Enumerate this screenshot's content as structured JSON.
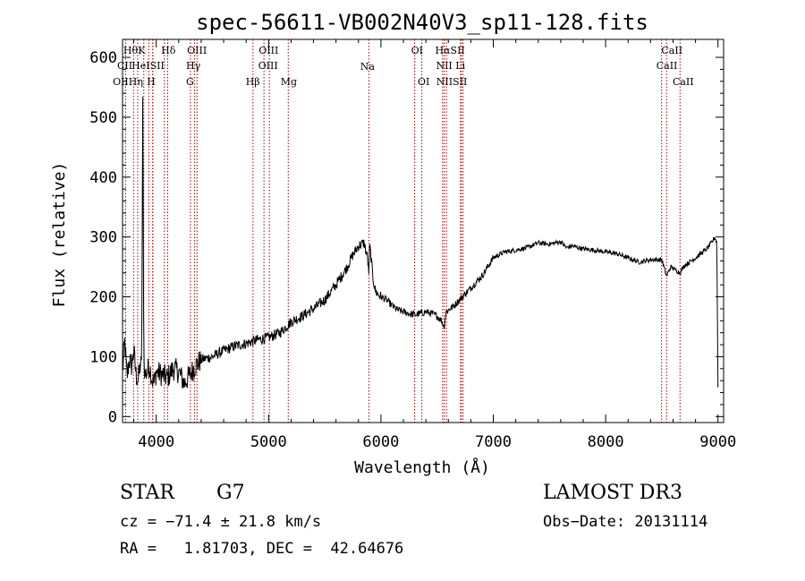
{
  "chart_data": {
    "type": "line",
    "title": "spec-56611-VB002N40V3_sp11-128.fits",
    "xlabel": "Wavelength (Å)",
    "ylabel": "Flux (relative)",
    "xlim": [
      3700,
      9050
    ],
    "ylim": [
      -10,
      630
    ],
    "xticks": [
      4000,
      5000,
      6000,
      7000,
      8000,
      9000
    ],
    "yticks": [
      0,
      100,
      200,
      300,
      400,
      500,
      600
    ],
    "line_color": "#000000",
    "marker_color": "#b00000",
    "spectrum": {
      "name": "flux",
      "x": [
        3700,
        3720,
        3740,
        3760,
        3780,
        3800,
        3820,
        3840,
        3860,
        3870,
        3880,
        3890,
        3900,
        3920,
        3940,
        3960,
        3980,
        4000,
        4050,
        4100,
        4150,
        4200,
        4250,
        4300,
        4350,
        4400,
        4500,
        4600,
        4700,
        4800,
        4900,
        5000,
        5100,
        5200,
        5300,
        5400,
        5500,
        5600,
        5700,
        5750,
        5800,
        5850,
        5880,
        5893,
        5900,
        5910,
        5930,
        5950,
        5970,
        6000,
        6050,
        6100,
        6150,
        6200,
        6250,
        6300,
        6350,
        6400,
        6450,
        6500,
        6540,
        6563,
        6580,
        6600,
        6650,
        6700,
        6750,
        6800,
        6900,
        7000,
        7100,
        7200,
        7300,
        7400,
        7500,
        7600,
        7650,
        7700,
        7800,
        7900,
        8000,
        8100,
        8200,
        8300,
        8400,
        8500,
        8542,
        8580,
        8662,
        8700,
        8800,
        8900,
        8950,
        8970,
        8990,
        9000
      ],
      "y": [
        75,
        125,
        65,
        95,
        85,
        110,
        70,
        60,
        90,
        80,
        520,
        95,
        70,
        75,
        85,
        65,
        55,
        75,
        70,
        65,
        80,
        75,
        55,
        70,
        85,
        95,
        100,
        110,
        118,
        122,
        128,
        132,
        140,
        158,
        168,
        180,
        195,
        220,
        250,
        270,
        285,
        290,
        265,
        240,
        285,
        270,
        230,
        210,
        205,
        200,
        195,
        185,
        178,
        175,
        172,
        170,
        172,
        175,
        172,
        168,
        160,
        150,
        175,
        178,
        185,
        195,
        205,
        215,
        235,
        265,
        275,
        278,
        282,
        290,
        288,
        292,
        282,
        285,
        280,
        278,
        275,
        272,
        265,
        258,
        262,
        262,
        235,
        250,
        240,
        252,
        265,
        280,
        292,
        300,
        290,
        50
      ]
    },
    "line_markers": [
      {
        "name": "OII",
        "wl": 3727
      },
      {
        "name": "Hθ",
        "wl": 3798
      },
      {
        "name": "CII",
        "wl": 3835
      },
      {
        "name": "Hη",
        "wl": 3889
      },
      {
        "name": "K",
        "wl": 3934
      },
      {
        "name": "HeI",
        "wl": 3968
      },
      {
        "name": "H",
        "wl": 3970
      },
      {
        "name": "SII",
        "wl": 4072
      },
      {
        "name": "Hδ",
        "wl": 4102
      },
      {
        "name": "G",
        "wl": 4304
      },
      {
        "name": "Hγ",
        "wl": 4340
      },
      {
        "name": "OIII",
        "wl": 4363
      },
      {
        "name": "Hβ",
        "wl": 4861
      },
      {
        "name": "OIII",
        "wl": 4959
      },
      {
        "name": "OIII",
        "wl": 5007
      },
      {
        "name": "Mg",
        "wl": 5175
      },
      {
        "name": "Na",
        "wl": 5893
      },
      {
        "name": "OI",
        "wl": 6300
      },
      {
        "name": "OI",
        "wl": 6364
      },
      {
        "name": "NII",
        "wl": 6548
      },
      {
        "name": "Hα",
        "wl": 6563
      },
      {
        "name": "NII",
        "wl": 6583
      },
      {
        "name": "Li",
        "wl": 6708
      },
      {
        "name": "SII",
        "wl": 6716
      },
      {
        "name": "SII",
        "wl": 6731
      },
      {
        "name": "CaII",
        "wl": 8498
      },
      {
        "name": "CaII",
        "wl": 8542
      },
      {
        "name": "CaII",
        "wl": 8662
      }
    ],
    "marker_labels": [
      {
        "text": "Hθ",
        "wl": 3772,
        "row": 0
      },
      {
        "text": "K",
        "wl": 3870,
        "row": 0
      },
      {
        "text": "Hδ",
        "wl": 4108,
        "row": 0
      },
      {
        "text": "OIII",
        "wl": 4362,
        "row": 0
      },
      {
        "text": "OIII",
        "wl": 5000,
        "row": 0
      },
      {
        "text": "OI",
        "wl": 6322,
        "row": 0
      },
      {
        "text": "HαSII",
        "wl": 6615,
        "row": 0
      },
      {
        "text": "CaII",
        "wl": 8590,
        "row": 0
      },
      {
        "text": "CII",
        "wl": 3720,
        "row": 1
      },
      {
        "text": "HeISII",
        "wl": 3927,
        "row": 1
      },
      {
        "text": "Hγ",
        "wl": 4330,
        "row": 1
      },
      {
        "text": "OIII",
        "wl": 4995,
        "row": 1
      },
      {
        "text": "NII Li",
        "wl": 6620,
        "row": 1
      },
      {
        "text": "CaII",
        "wl": 8545,
        "row": 1
      },
      {
        "text": "OIIHη",
        "wl": 3748,
        "row": 2
      },
      {
        "text": "H",
        "wl": 3955,
        "row": 2
      },
      {
        "text": "G",
        "wl": 4300,
        "row": 2
      },
      {
        "text": "Hβ",
        "wl": 4860,
        "row": 2
      },
      {
        "text": "Mg",
        "wl": 5180,
        "row": 2
      },
      {
        "text": "Na",
        "wl": 5880,
        "row": 0.95
      },
      {
        "text": "OI",
        "wl": 6380,
        "row": 2
      },
      {
        "text": "NIISII",
        "wl": 6630,
        "row": 2
      },
      {
        "text": "CaII",
        "wl": 8690,
        "row": 2
      }
    ]
  },
  "info": {
    "object_class": "STAR",
    "subclass": "G7",
    "survey": "LAMOST DR3",
    "redshift": "cz = −71.4 ± 21.8 km/s",
    "obs_date": "Obs−Date: 20131114",
    "coords": "RA =   1.81703, DEC =  42.64676"
  }
}
